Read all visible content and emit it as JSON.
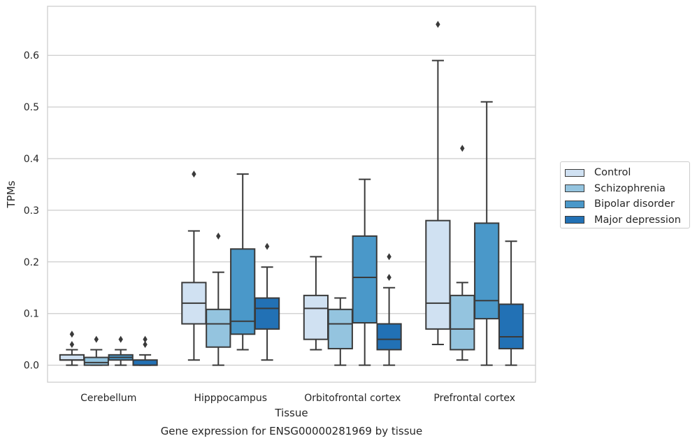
{
  "chart_data": {
    "type": "box",
    "title": "Gene expression for ENSG00000281969 by tissue",
    "xlabel": "Tissue",
    "ylabel": "TPMs",
    "ylim": [
      -0.033,
      0.695
    ],
    "yticks": [
      "0.0",
      "0.1",
      "0.2",
      "0.3",
      "0.4",
      "0.5",
      "0.6"
    ],
    "ytick_values": [
      0.0,
      0.1,
      0.2,
      0.3,
      0.4,
      0.5,
      0.6
    ],
    "grid": "horizontal",
    "legend_position": "right",
    "categories": [
      "Cerebellum",
      "Hipppocampus",
      "Orbitofrontal cortex",
      "Prefrontal cortex"
    ],
    "series": [
      {
        "name": "Control",
        "color": "#d0e1f2",
        "boxes": [
          {
            "whisker_low": 0.0,
            "q1": 0.01,
            "median": 0.01,
            "q3": 0.02,
            "whisker_high": 0.03,
            "outliers": [
              0.04,
              0.06
            ]
          },
          {
            "whisker_low": 0.01,
            "q1": 0.08,
            "median": 0.12,
            "q3": 0.16,
            "whisker_high": 0.26,
            "outliers": [
              0.37
            ]
          },
          {
            "whisker_low": 0.03,
            "q1": 0.05,
            "median": 0.11,
            "q3": 0.135,
            "whisker_high": 0.21,
            "outliers": []
          },
          {
            "whisker_low": 0.04,
            "q1": 0.07,
            "median": 0.12,
            "q3": 0.28,
            "whisker_high": 0.59,
            "outliers": [
              0.66
            ]
          }
        ]
      },
      {
        "name": "Schizophrenia",
        "color": "#94c4df",
        "boxes": [
          {
            "whisker_low": 0.0,
            "q1": 0.0,
            "median": 0.005,
            "q3": 0.015,
            "whisker_high": 0.03,
            "outliers": [
              0.05
            ]
          },
          {
            "whisker_low": 0.0,
            "q1": 0.035,
            "median": 0.08,
            "q3": 0.108,
            "whisker_high": 0.18,
            "outliers": [
              0.25
            ]
          },
          {
            "whisker_low": 0.0,
            "q1": 0.032,
            "median": 0.08,
            "q3": 0.108,
            "whisker_high": 0.13,
            "outliers": []
          },
          {
            "whisker_low": 0.01,
            "q1": 0.03,
            "median": 0.07,
            "q3": 0.135,
            "whisker_high": 0.16,
            "outliers": [
              0.42
            ]
          }
        ]
      },
      {
        "name": "Bipolar disorder",
        "color": "#4a98c9",
        "boxes": [
          {
            "whisker_low": 0.0,
            "q1": 0.01,
            "median": 0.015,
            "q3": 0.02,
            "whisker_high": 0.03,
            "outliers": [
              0.05
            ]
          },
          {
            "whisker_low": 0.03,
            "q1": 0.06,
            "median": 0.085,
            "q3": 0.225,
            "whisker_high": 0.37,
            "outliers": []
          },
          {
            "whisker_low": 0.0,
            "q1": 0.082,
            "median": 0.17,
            "q3": 0.25,
            "whisker_high": 0.36,
            "outliers": []
          },
          {
            "whisker_low": 0.0,
            "q1": 0.09,
            "median": 0.125,
            "q3": 0.275,
            "whisker_high": 0.51,
            "outliers": []
          }
        ]
      },
      {
        "name": "Major depression",
        "color": "#2271b5",
        "boxes": [
          {
            "whisker_low": 0.0,
            "q1": 0.0,
            "median": 0.0,
            "q3": 0.01,
            "whisker_high": 0.02,
            "outliers": [
              0.04,
              0.05
            ]
          },
          {
            "whisker_low": 0.01,
            "q1": 0.07,
            "median": 0.11,
            "q3": 0.13,
            "whisker_high": 0.19,
            "outliers": [
              0.23
            ]
          },
          {
            "whisker_low": 0.0,
            "q1": 0.03,
            "median": 0.05,
            "q3": 0.08,
            "whisker_high": 0.15,
            "outliers": [
              0.17,
              0.21
            ]
          },
          {
            "whisker_low": 0.0,
            "q1": 0.032,
            "median": 0.055,
            "q3": 0.118,
            "whisker_high": 0.24,
            "outliers": []
          }
        ]
      }
    ]
  }
}
